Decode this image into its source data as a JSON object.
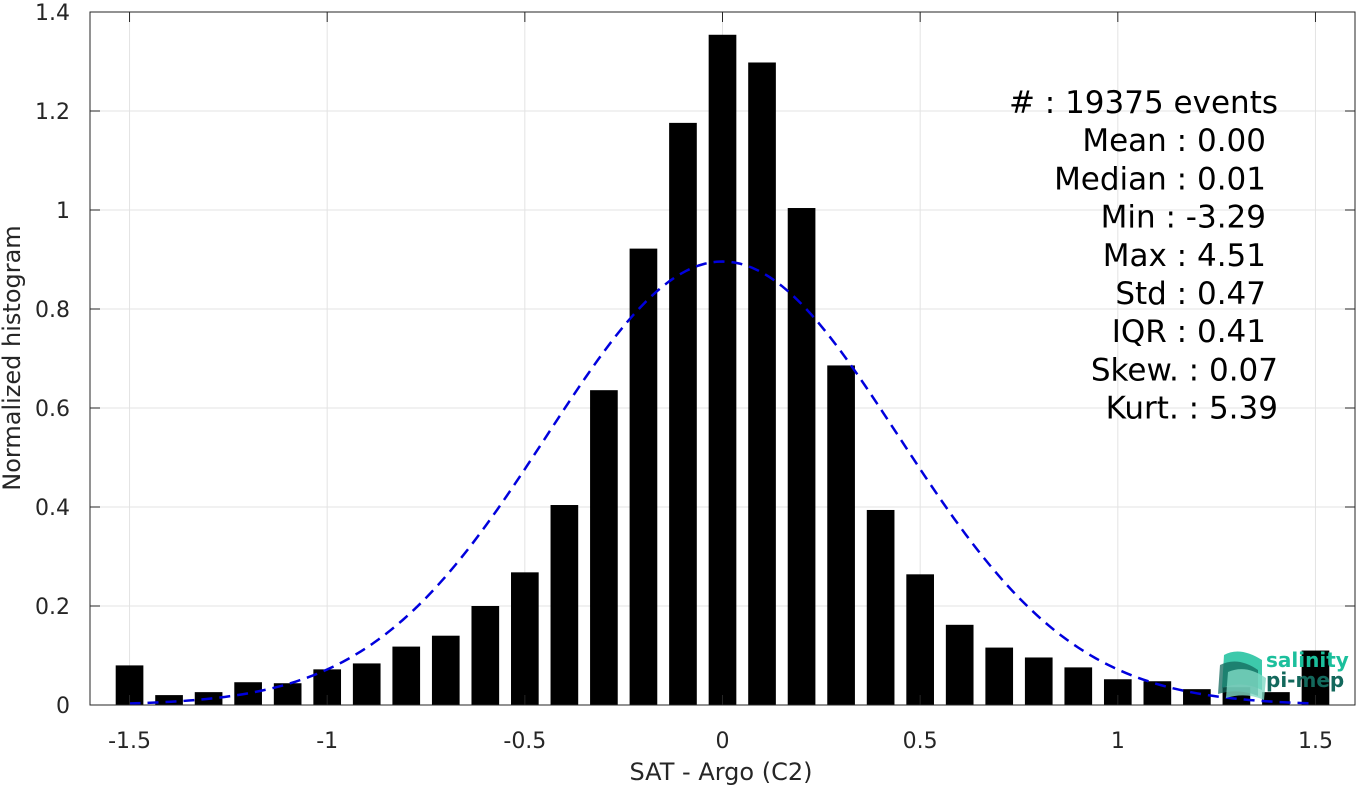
{
  "chart_data": {
    "type": "bar",
    "xlabel": "SAT - Argo (C2)",
    "ylabel": "Normalized histogram",
    "xlim": [
      -1.6,
      1.6
    ],
    "ylim": [
      0,
      1.4
    ],
    "xticks": [
      -1.5,
      -1,
      -0.5,
      0,
      0.5,
      1,
      1.5
    ],
    "xtick_labels": [
      "-1.5",
      "-1",
      "-0.5",
      "0",
      "0.5",
      "1",
      "1.5"
    ],
    "yticks": [
      0,
      0.2,
      0.4,
      0.6,
      0.8,
      1,
      1.2,
      1.4
    ],
    "ytick_labels": [
      "0",
      "0.2",
      "0.4",
      "0.6",
      "0.8",
      "1",
      "1.2",
      "1.4"
    ],
    "grid": true,
    "bar_width": 0.07,
    "series": [
      {
        "x": [
          -1.5,
          -1.4,
          -1.3,
          -1.2,
          -1.1,
          -1.0,
          -0.9,
          -0.8,
          -0.7,
          -0.6,
          -0.5,
          -0.4,
          -0.3,
          -0.2,
          -0.1,
          0.0,
          0.1,
          0.2,
          0.3,
          0.4,
          0.5,
          0.6,
          0.7,
          0.8,
          0.9,
          1.0,
          1.1,
          1.2,
          1.3,
          1.4,
          1.5
        ],
        "values": [
          0.08,
          0.02,
          0.026,
          0.046,
          0.044,
          0.072,
          0.084,
          0.118,
          0.14,
          0.2,
          0.268,
          0.404,
          0.636,
          0.922,
          1.176,
          1.354,
          1.298,
          1.004,
          0.686,
          0.394,
          0.264,
          0.162,
          0.116,
          0.096,
          0.076,
          0.052,
          0.048,
          0.032,
          0.036,
          0.026,
          0.11
        ],
        "color": "#000000"
      },
      {
        "type": "line",
        "style": "dashed",
        "color": "#0000dd",
        "fit": "gaussian",
        "mean": 0.0,
        "std": 0.445,
        "peak": 0.896,
        "x_range": [
          -1.5,
          1.5
        ]
      }
    ],
    "annotations": [
      {
        "label": "#  : 19375 events"
      },
      {
        "label": "Mean : 0.00"
      },
      {
        "label": "Median : 0.01"
      },
      {
        "label": "Min : -3.29"
      },
      {
        "label": "Max : 4.51"
      },
      {
        "label": "Std : 0.47"
      },
      {
        "label": "IQR : 0.41"
      },
      {
        "label": "Skew. : 0.07"
      },
      {
        "label": "Kurt. : 5.39"
      }
    ]
  },
  "logo": {
    "line1": "salinity",
    "line2": "pi-mep",
    "color1": "#1bbf9c",
    "color2": "#13685c"
  }
}
